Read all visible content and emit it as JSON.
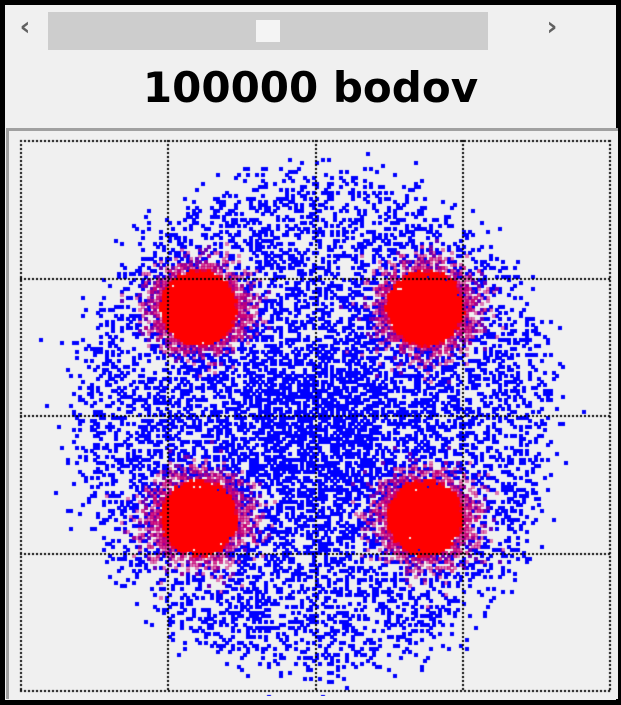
{
  "scrollbar": {
    "left_icon": "chevron-left-icon",
    "right_icon": "chevron-right-icon",
    "left_glyph": "‹",
    "right_glyph": "›",
    "position_fraction": 0.5
  },
  "title": "100000 bodov",
  "chart_data": {
    "type": "scatter",
    "point_count": 100000,
    "grid": true,
    "grid_style": "dotted",
    "grid_cells": [
      4,
      4
    ],
    "series": [
      {
        "color": "#0000ff"
      },
      {
        "color": "#ff0000"
      }
    ],
    "background": "#f0f0f0"
  }
}
